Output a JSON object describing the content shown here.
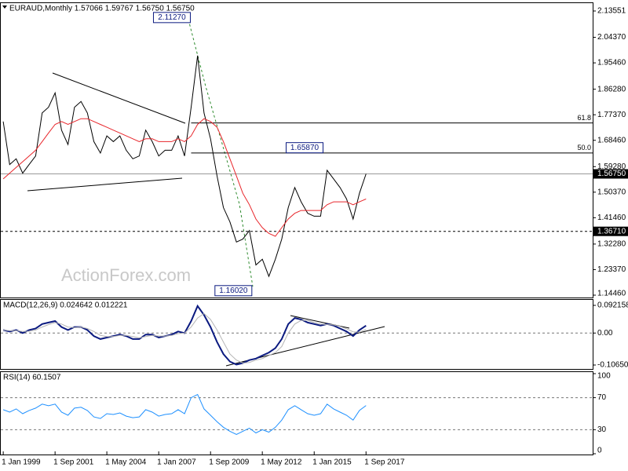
{
  "watermark": "ActionForex.com",
  "chart_data": [
    {
      "type": "line",
      "title": "EURAUD,Monthly 1.57066 1.59767 1.56750 1.56750",
      "x": [
        "1999-01-01",
        "1999-05-01",
        "1999-09-01",
        "2000-01-01",
        "2000-05-01",
        "2000-09-01",
        "2001-01-01",
        "2001-05-01",
        "2001-09-01",
        "2002-01-01",
        "2002-05-01",
        "2002-09-01",
        "2003-01-01",
        "2003-05-01",
        "2003-09-01",
        "2004-01-01",
        "2004-05-01",
        "2004-09-01",
        "2005-01-01",
        "2005-05-01",
        "2005-09-01",
        "2006-01-01",
        "2006-05-01",
        "2006-09-01",
        "2007-01-01",
        "2007-05-01",
        "2007-09-01",
        "2008-01-01",
        "2008-05-01",
        "2008-09-01",
        "2009-01-01",
        "2009-05-01",
        "2009-09-01",
        "2010-01-01",
        "2010-05-01",
        "2010-09-01",
        "2011-01-01",
        "2011-05-01",
        "2011-09-01",
        "2012-01-01",
        "2012-05-01",
        "2012-09-01",
        "2013-01-01",
        "2013-05-01",
        "2013-09-01",
        "2014-01-01",
        "2014-05-01",
        "2014-09-01",
        "2015-01-01",
        "2015-05-01",
        "2015-09-01",
        "2016-01-01",
        "2016-05-01",
        "2016-09-01",
        "2017-01-01",
        "2017-05-01",
        "2017-09-01"
      ],
      "series": [
        {
          "color": "#000000",
          "values": [
            1.75,
            1.6,
            1.62,
            1.57,
            1.6,
            1.63,
            1.78,
            1.8,
            1.85,
            1.72,
            1.67,
            1.8,
            1.82,
            1.78,
            1.68,
            1.64,
            1.7,
            1.68,
            1.7,
            1.65,
            1.62,
            1.63,
            1.72,
            1.68,
            1.63,
            1.65,
            1.65,
            1.7,
            1.63,
            1.8,
            1.98,
            1.78,
            1.69,
            1.56,
            1.45,
            1.4,
            1.33,
            1.34,
            1.37,
            1.25,
            1.27,
            1.21,
            1.27,
            1.34,
            1.45,
            1.52,
            1.47,
            1.43,
            1.42,
            1.42,
            1.58,
            1.55,
            1.52,
            1.48,
            1.41,
            1.5,
            1.5675
          ]
        },
        {
          "color": "#e8262b",
          "values": [
            1.55,
            1.57,
            1.59,
            1.61,
            1.63,
            1.65,
            1.68,
            1.71,
            1.74,
            1.75,
            1.74,
            1.75,
            1.76,
            1.76,
            1.75,
            1.74,
            1.73,
            1.72,
            1.71,
            1.7,
            1.69,
            1.68,
            1.69,
            1.69,
            1.68,
            1.68,
            1.68,
            1.69,
            1.68,
            1.7,
            1.74,
            1.76,
            1.75,
            1.73,
            1.68,
            1.62,
            1.56,
            1.5,
            1.46,
            1.41,
            1.38,
            1.36,
            1.35,
            1.38,
            1.41,
            1.43,
            1.44,
            1.44,
            1.44,
            1.44,
            1.46,
            1.47,
            1.47,
            1.47,
            1.46,
            1.47,
            1.48
          ]
        }
      ],
      "xlim": [
        "1998-11-01",
        "2029-05-01"
      ],
      "ylim": [
        1.1446,
        2.13551
      ],
      "yticks": [
        {
          "value": 2.13551,
          "label": "2.13551"
        },
        {
          "value": 2.0437,
          "label": "2.04370"
        },
        {
          "value": 1.9546,
          "label": "1.95460"
        },
        {
          "value": 1.8628,
          "label": "1.86280"
        },
        {
          "value": 1.7737,
          "label": "1.77370"
        },
        {
          "value": 1.6846,
          "label": "1.68460"
        },
        {
          "value": 1.5928,
          "label": "1.59280"
        },
        {
          "value": 1.5037,
          "label": "1.50370"
        },
        {
          "value": 1.4146,
          "label": "1.41460"
        },
        {
          "value": 1.3228,
          "label": "1.32280"
        },
        {
          "value": 1.2337,
          "label": "1.23370"
        },
        {
          "value": 1.1446,
          "label": "1.14460"
        }
      ],
      "grid": false,
      "levels": [
        {
          "value": 1.5675,
          "label": "1.56750",
          "style": "solid"
        },
        {
          "value": 1.3671,
          "label": "1.36710",
          "style": "dashed"
        }
      ],
      "fib_lines": [
        {
          "name": "61.8",
          "y": 1.745,
          "from": "2008-09-01"
        },
        {
          "name": "50.0",
          "y": 1.6405,
          "from": "2008-09-01"
        }
      ],
      "annotations": [
        {
          "label": "2.11270",
          "value": 2.1127,
          "x": "2008-09-01"
        },
        {
          "label": "1.65870",
          "value": 1.6587,
          "x": "2015-07-01"
        },
        {
          "label": "1.16020",
          "value": 1.1602,
          "x": "2011-11-01"
        }
      ]
    },
    {
      "type": "line",
      "title": "MACD(12,26,9) 0.024642 0.012221",
      "x": [
        "1999-01-01",
        "1999-05-01",
        "1999-09-01",
        "2000-01-01",
        "2000-05-01",
        "2000-09-01",
        "2001-01-01",
        "2001-05-01",
        "2001-09-01",
        "2002-01-01",
        "2002-05-01",
        "2002-09-01",
        "2003-01-01",
        "2003-05-01",
        "2003-09-01",
        "2004-01-01",
        "2004-05-01",
        "2004-09-01",
        "2005-01-01",
        "2005-05-01",
        "2005-09-01",
        "2006-01-01",
        "2006-05-01",
        "2006-09-01",
        "2007-01-01",
        "2007-05-01",
        "2007-09-01",
        "2008-01-01",
        "2008-05-01",
        "2008-09-01",
        "2009-01-01",
        "2009-05-01",
        "2009-09-01",
        "2010-01-01",
        "2010-05-01",
        "2010-09-01",
        "2011-01-01",
        "2011-05-01",
        "2011-09-01",
        "2012-01-01",
        "2012-05-01",
        "2012-09-01",
        "2013-01-01",
        "2013-05-01",
        "2013-09-01",
        "2014-01-01",
        "2014-05-01",
        "2014-09-01",
        "2015-01-01",
        "2015-05-01",
        "2015-09-01",
        "2016-01-01",
        "2016-05-01",
        "2016-09-01",
        "2017-01-01",
        "2017-05-01",
        "2017-09-01"
      ],
      "series": [
        {
          "color": "#0b1a80",
          "values": [
            0.01,
            0.005,
            0.01,
            0.0,
            0.01,
            0.015,
            0.03,
            0.035,
            0.04,
            0.02,
            0.01,
            0.02,
            0.02,
            0.01,
            -0.01,
            -0.02,
            -0.015,
            -0.01,
            -0.005,
            -0.01,
            -0.02,
            -0.02,
            -0.005,
            -0.005,
            -0.015,
            -0.01,
            -0.005,
            0.005,
            0.0,
            0.04,
            0.09,
            0.06,
            0.02,
            -0.03,
            -0.07,
            -0.095,
            -0.105,
            -0.1,
            -0.09,
            -0.085,
            -0.075,
            -0.065,
            -0.05,
            -0.02,
            0.03,
            0.05,
            0.045,
            0.035,
            0.03,
            0.025,
            0.03,
            0.025,
            0.015,
            0.005,
            -0.01,
            0.01,
            0.024642
          ]
        },
        {
          "color": "#b4b4b4",
          "values": [
            0.01,
            0.008,
            0.008,
            0.005,
            0.006,
            0.01,
            0.02,
            0.028,
            0.035,
            0.03,
            0.02,
            0.018,
            0.02,
            0.015,
            0.005,
            -0.008,
            -0.012,
            -0.012,
            -0.008,
            -0.008,
            -0.012,
            -0.016,
            -0.012,
            -0.008,
            -0.01,
            -0.01,
            -0.008,
            -0.002,
            0.0,
            0.02,
            0.05,
            0.065,
            0.045,
            0.01,
            -0.03,
            -0.07,
            -0.09,
            -0.1,
            -0.098,
            -0.09,
            -0.085,
            -0.075,
            -0.065,
            -0.045,
            0.0,
            0.03,
            0.042,
            0.042,
            0.035,
            0.03,
            0.028,
            0.027,
            0.022,
            0.014,
            0.004,
            0.003,
            0.012221
          ]
        }
      ],
      "xlim": [
        "1998-11-01",
        "2029-05-01"
      ],
      "ylim": [
        -0.106503,
        0.092158
      ],
      "yticks": [
        0.092158,
        {
          "value": 0,
          "label": "0.00"
        },
        -0.106503
      ],
      "grid": "dashed"
    },
    {
      "type": "line",
      "title": "RSI(14) 60.1507",
      "x": [
        "1999-01-01",
        "1999-05-01",
        "1999-09-01",
        "2000-01-01",
        "2000-05-01",
        "2000-09-01",
        "2001-01-01",
        "2001-05-01",
        "2001-09-01",
        "2002-01-01",
        "2002-05-01",
        "2002-09-01",
        "2003-01-01",
        "2003-05-01",
        "2003-09-01",
        "2004-01-01",
        "2004-05-01",
        "2004-09-01",
        "2005-01-01",
        "2005-05-01",
        "2005-09-01",
        "2006-01-01",
        "2006-05-01",
        "2006-09-01",
        "2007-01-01",
        "2007-05-01",
        "2007-09-01",
        "2008-01-01",
        "2008-05-01",
        "2008-09-01",
        "2009-01-01",
        "2009-05-01",
        "2009-09-01",
        "2010-01-01",
        "2010-05-01",
        "2010-09-01",
        "2011-01-01",
        "2011-05-01",
        "2011-09-01",
        "2012-01-01",
        "2012-05-01",
        "2012-09-01",
        "2013-01-01",
        "2013-05-01",
        "2013-09-01",
        "2014-01-01",
        "2014-05-01",
        "2014-09-01",
        "2015-01-01",
        "2015-05-01",
        "2015-09-01",
        "2016-01-01",
        "2016-05-01",
        "2016-09-01",
        "2017-01-01",
        "2017-05-01",
        "2017-09-01"
      ],
      "series": [
        {
          "color": "#1e90ff",
          "values": [
            55,
            52,
            56,
            50,
            54,
            57,
            62,
            60,
            62,
            52,
            48,
            57,
            58,
            54,
            46,
            44,
            50,
            49,
            51,
            47,
            45,
            46,
            55,
            52,
            47,
            49,
            50,
            55,
            50,
            70,
            74,
            56,
            48,
            40,
            33,
            28,
            24,
            28,
            32,
            26,
            30,
            27,
            33,
            42,
            55,
            60,
            55,
            50,
            48,
            50,
            62,
            56,
            52,
            48,
            42,
            54,
            60.1507
          ]
        }
      ],
      "xlim": [
        "1998-11-01",
        "2029-05-01"
      ],
      "ylim": [
        0,
        100
      ],
      "yticks": [
        100,
        70,
        30,
        0
      ],
      "grid": "dashed",
      "xticks": [
        {
          "value": "1999-01-01",
          "label": "1 Jan 1999"
        },
        {
          "value": "2001-09-01",
          "label": "1 Sep 2001"
        },
        {
          "value": "2004-05-01",
          "label": "1 May 2004"
        },
        {
          "value": "2007-01-01",
          "label": "1 Jan 2007"
        },
        {
          "value": "2009-09-01",
          "label": "1 Sep 2009"
        },
        {
          "value": "2012-05-01",
          "label": "1 May 2012"
        },
        {
          "value": "2015-01-01",
          "label": "1 Jan 2015"
        },
        {
          "value": "2017-09-01",
          "label": "1 Sep 2017"
        }
      ]
    }
  ]
}
